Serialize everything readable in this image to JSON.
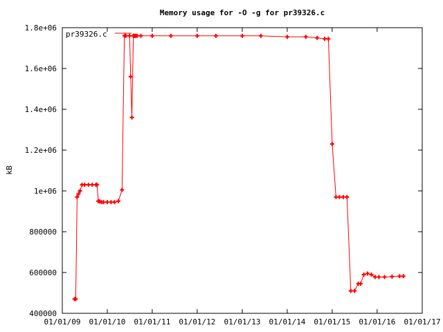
{
  "chart_data": {
    "type": "line",
    "title": "Memory usage for -O -g for pr39326.c",
    "xlabel": "",
    "ylabel": "kB",
    "xlim": [
      "2009-01-01",
      "2017-01-01"
    ],
    "ylim": [
      400000,
      1800000
    ],
    "x_ticks": [
      "01/01/09",
      "01/01/10",
      "01/01/11",
      "01/01/12",
      "01/01/13",
      "01/01/14",
      "01/01/15",
      "01/01/16",
      "01/01/17"
    ],
    "y_ticks": [
      {
        "value": 400000,
        "label": "400000"
      },
      {
        "value": 600000,
        "label": "600000"
      },
      {
        "value": 800000,
        "label": "800000"
      },
      {
        "value": 1000000,
        "label": "1e+06"
      },
      {
        "value": 1200000,
        "label": "1.2e+06"
      },
      {
        "value": 1400000,
        "label": "1.4e+06"
      },
      {
        "value": 1600000,
        "label": "1.6e+06"
      },
      {
        "value": 1800000,
        "label": "1.8e+06"
      }
    ],
    "grid": false,
    "legend_position": "top-left",
    "series_color": "#ff0000",
    "series": [
      {
        "name": "pr39326.c",
        "x": [
          "2009-04-10",
          "2009-04-20",
          "2009-05-01",
          "2009-05-12",
          "2009-05-25",
          "2009-06-10",
          "2009-07-01",
          "2009-08-01",
          "2009-09-01",
          "2009-10-01",
          "2009-10-10",
          "2009-10-20",
          "2009-11-01",
          "2009-11-15",
          "2009-12-01",
          "2010-01-01",
          "2010-02-01",
          "2010-03-01",
          "2010-04-01",
          "2010-05-01",
          "2010-05-20",
          "2010-06-01",
          "2010-07-01",
          "2010-07-10",
          "2010-07-20",
          "2010-08-01",
          "2010-08-05",
          "2010-08-10",
          "2010-08-15",
          "2010-08-20",
          "2010-09-01",
          "2010-10-01",
          "2011-01-01",
          "2011-06-01",
          "2012-01-01",
          "2012-06-01",
          "2013-01-01",
          "2013-06-01",
          "2014-01-01",
          "2014-06-01",
          "2014-09-01",
          "2014-11-01",
          "2014-12-01",
          "2015-01-01",
          "2015-02-01",
          "2015-03-01",
          "2015-04-01",
          "2015-05-01",
          "2015-06-01",
          "2015-07-01",
          "2015-08-01",
          "2015-08-20",
          "2015-09-15",
          "2015-10-15",
          "2015-11-15",
          "2015-12-15",
          "2016-01-15",
          "2016-03-01",
          "2016-05-01",
          "2016-07-01",
          "2016-08-01"
        ],
        "values": [
          470000,
          470000,
          970000,
          985000,
          1000000,
          1030000,
          1030000,
          1030000,
          1030000,
          1030000,
          1030000,
          950000,
          948000,
          945000,
          945000,
          945000,
          945000,
          945000,
          950000,
          1005000,
          1760000,
          1760000,
          1760000,
          1560000,
          1360000,
          1760000,
          1760000,
          1760000,
          1760000,
          1760000,
          1760000,
          1760000,
          1760000,
          1760000,
          1760000,
          1760000,
          1760000,
          1760000,
          1755000,
          1755000,
          1750000,
          1745000,
          1745000,
          1230000,
          970000,
          970000,
          970000,
          970000,
          510000,
          510000,
          545000,
          545000,
          590000,
          595000,
          590000,
          578000,
          578000,
          578000,
          580000,
          582000,
          582000
        ]
      }
    ]
  }
}
